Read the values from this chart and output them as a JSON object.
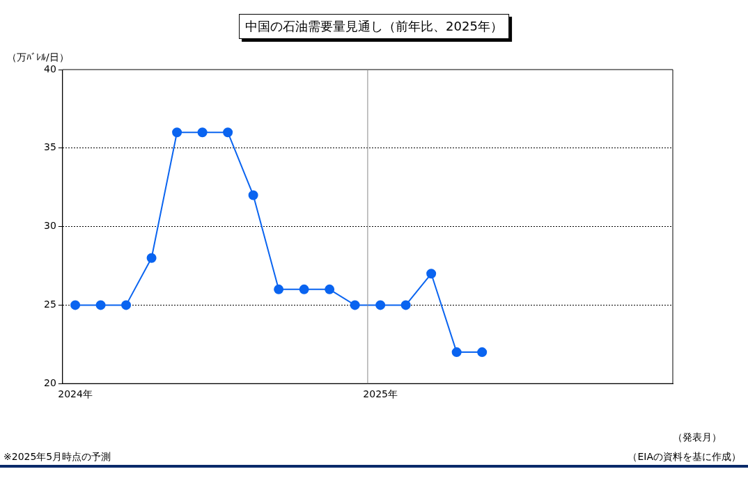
{
  "chart_data": {
    "type": "line",
    "title": "中国の石油需要量見通し（前年比、2025年）",
    "ylabel": "（万ﾊﾞﾚﾙ/日）",
    "xlabel": "（発表月）",
    "categories": [
      "2024年",
      null,
      null,
      null,
      null,
      null,
      null,
      null,
      null,
      null,
      null,
      null,
      "2025年",
      null,
      null,
      null,
      null,
      null,
      null,
      null,
      null,
      null,
      null,
      null
    ],
    "series": [
      {
        "color": "#0a64f0",
        "values": [
          25,
          25,
          25,
          28,
          36,
          36,
          36,
          32,
          26,
          26,
          26,
          25,
          25,
          25,
          27,
          22,
          22,
          null,
          null,
          null,
          null,
          null,
          null,
          null
        ]
      }
    ],
    "ylim": [
      20,
      40
    ],
    "yticks": [
      20,
      25,
      30,
      35,
      40
    ],
    "grid": "y",
    "legend": false,
    "marker": "circle",
    "line_style": "solid",
    "annotations": [
      "※2025年5月時点の予測",
      "（EIAの資料を基に作成）"
    ]
  }
}
